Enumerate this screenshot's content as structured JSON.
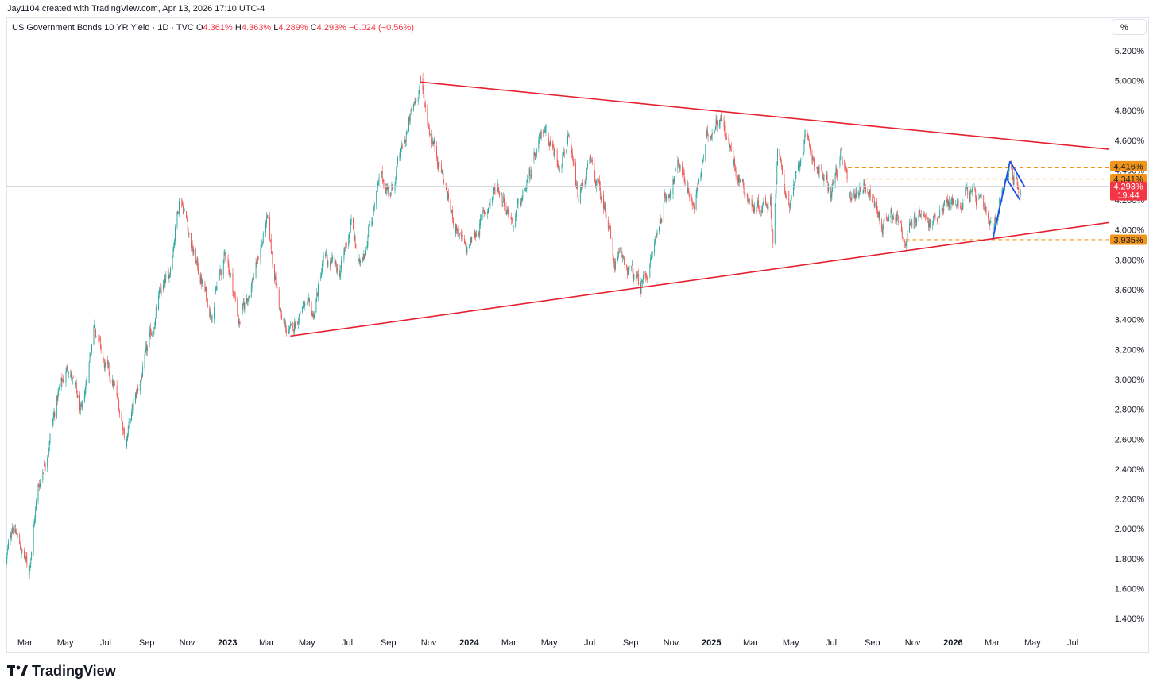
{
  "header": {
    "credit": "Jay1104 created with TradingView.com, Apr 13, 2026 17:10 UTC-4"
  },
  "legend": {
    "symbol": "US Government Bonds 10 YR Yield · 1D · TVC",
    "o_label": "O",
    "o_value": "4.361%",
    "h_label": "H",
    "h_value": "4.363%",
    "l_label": "L",
    "l_value": "4.289%",
    "c_label": "C",
    "c_value": "4.293%",
    "change": "−0.024 (−0.56%)"
  },
  "scale_button": "%",
  "brand": {
    "name": "TradingView"
  },
  "colors": {
    "up": "#26a69a",
    "down": "#ef5350",
    "trendline": "#e5202f",
    "pattern": "#1e53e5",
    "level": "#f0941b",
    "last_price": "#f23645"
  },
  "chart_data": {
    "type": "candlestick",
    "title": "US Government Bonds 10 YR Yield · 1D · TVC",
    "y_unit": "%",
    "ylim": [
      1.3,
      5.3
    ],
    "y_ticks": [
      "5.200%",
      "5.000%",
      "4.800%",
      "4.600%",
      "4.400%",
      "4.200%",
      "4.000%",
      "3.800%",
      "3.600%",
      "3.400%",
      "3.200%",
      "3.000%",
      "2.800%",
      "2.600%",
      "2.400%",
      "2.200%",
      "2.000%",
      "1.800%",
      "1.600%",
      "1.400%"
    ],
    "x_ticks": [
      {
        "label": "Mar",
        "date": "2022-03-01",
        "bold": false
      },
      {
        "label": "May",
        "date": "2022-05-01",
        "bold": false
      },
      {
        "label": "Jul",
        "date": "2022-07-01",
        "bold": false
      },
      {
        "label": "Sep",
        "date": "2022-09-01",
        "bold": false
      },
      {
        "label": "Nov",
        "date": "2022-11-01",
        "bold": false
      },
      {
        "label": "2023",
        "date": "2023-01-01",
        "bold": true
      },
      {
        "label": "Mar",
        "date": "2023-03-01",
        "bold": false
      },
      {
        "label": "May",
        "date": "2023-05-01",
        "bold": false
      },
      {
        "label": "Jul",
        "date": "2023-07-01",
        "bold": false
      },
      {
        "label": "Sep",
        "date": "2023-09-01",
        "bold": false
      },
      {
        "label": "Nov",
        "date": "2023-11-01",
        "bold": false
      },
      {
        "label": "2024",
        "date": "2024-01-01",
        "bold": true
      },
      {
        "label": "Mar",
        "date": "2024-03-01",
        "bold": false
      },
      {
        "label": "May",
        "date": "2024-05-01",
        "bold": false
      },
      {
        "label": "Jul",
        "date": "2024-07-01",
        "bold": false
      },
      {
        "label": "Sep",
        "date": "2024-09-01",
        "bold": false
      },
      {
        "label": "Nov",
        "date": "2024-11-01",
        "bold": false
      },
      {
        "label": "2025",
        "date": "2025-01-01",
        "bold": true
      },
      {
        "label": "Mar",
        "date": "2025-03-01",
        "bold": false
      },
      {
        "label": "May",
        "date": "2025-05-01",
        "bold": false
      },
      {
        "label": "Jul",
        "date": "2025-07-01",
        "bold": false
      },
      {
        "label": "Sep",
        "date": "2025-09-01",
        "bold": false
      },
      {
        "label": "Nov",
        "date": "2025-11-01",
        "bold": false
      },
      {
        "label": "2026",
        "date": "2026-01-01",
        "bold": true
      },
      {
        "label": "Mar",
        "date": "2026-03-01",
        "bold": false
      },
      {
        "label": "May",
        "date": "2026-05-01",
        "bold": false
      },
      {
        "label": "Jul",
        "date": "2026-07-01",
        "bold": false
      }
    ],
    "x_range": [
      "2022-02-01",
      "2026-08-25"
    ],
    "price_path": [
      [
        "2022-02-01",
        1.78
      ],
      [
        "2022-02-10",
        2.04
      ],
      [
        "2022-02-24",
        1.85
      ],
      [
        "2022-03-07",
        1.72
      ],
      [
        "2022-03-20",
        2.25
      ],
      [
        "2022-04-05",
        2.55
      ],
      [
        "2022-04-20",
        2.9
      ],
      [
        "2022-05-06",
        3.1
      ],
      [
        "2022-05-26",
        2.75
      ],
      [
        "2022-06-14",
        3.4
      ],
      [
        "2022-06-28",
        3.1
      ],
      [
        "2022-07-14",
        2.95
      ],
      [
        "2022-08-01",
        2.6
      ],
      [
        "2022-08-10",
        2.78
      ],
      [
        "2022-08-31",
        3.15
      ],
      [
        "2022-09-20",
        3.55
      ],
      [
        "2022-10-05",
        3.7
      ],
      [
        "2022-10-21",
        4.25
      ],
      [
        "2022-11-01",
        4.05
      ],
      [
        "2022-11-10",
        3.85
      ],
      [
        "2022-12-07",
        3.45
      ],
      [
        "2022-12-30",
        3.85
      ],
      [
        "2023-01-19",
        3.38
      ],
      [
        "2023-02-10",
        3.7
      ],
      [
        "2023-03-02",
        4.05
      ],
      [
        "2023-03-24",
        3.38
      ],
      [
        "2023-04-06",
        3.3
      ],
      [
        "2023-04-24",
        3.5
      ],
      [
        "2023-05-10",
        3.42
      ],
      [
        "2023-05-26",
        3.8
      ],
      [
        "2023-06-20",
        3.72
      ],
      [
        "2023-07-07",
        4.05
      ],
      [
        "2023-07-19",
        3.75
      ],
      [
        "2023-08-21",
        4.35
      ],
      [
        "2023-09-05",
        4.25
      ],
      [
        "2023-09-27",
        4.62
      ],
      [
        "2023-10-19",
        5.0
      ],
      [
        "2023-11-01",
        4.7
      ],
      [
        "2023-11-20",
        4.4
      ],
      [
        "2023-12-06",
        4.1
      ],
      [
        "2023-12-27",
        3.85
      ],
      [
        "2024-01-11",
        3.98
      ],
      [
        "2024-02-13",
        4.3
      ],
      [
        "2024-03-08",
        4.05
      ],
      [
        "2024-04-01",
        4.35
      ],
      [
        "2024-04-25",
        4.7
      ],
      [
        "2024-05-14",
        4.45
      ],
      [
        "2024-05-29",
        4.6
      ],
      [
        "2024-06-14",
        4.2
      ],
      [
        "2024-07-01",
        4.45
      ],
      [
        "2024-07-31",
        4.05
      ],
      [
        "2024-08-05",
        3.78
      ],
      [
        "2024-08-20",
        3.8
      ],
      [
        "2024-09-16",
        3.62
      ],
      [
        "2024-10-01",
        3.78
      ],
      [
        "2024-10-22",
        4.2
      ],
      [
        "2024-11-15",
        4.45
      ],
      [
        "2024-12-06",
        4.15
      ],
      [
        "2024-12-26",
        4.62
      ],
      [
        "2025-01-14",
        4.78
      ],
      [
        "2025-02-04",
        4.45
      ],
      [
        "2025-03-04",
        4.15
      ],
      [
        "2025-03-31",
        4.2
      ],
      [
        "2025-04-04",
        3.95
      ],
      [
        "2025-04-11",
        4.5
      ],
      [
        "2025-04-30",
        4.15
      ],
      [
        "2025-05-21",
        4.6
      ],
      [
        "2025-06-13",
        4.4
      ],
      [
        "2025-06-30",
        4.25
      ],
      [
        "2025-07-15",
        4.48
      ],
      [
        "2025-08-01",
        4.22
      ],
      [
        "2025-08-21",
        4.32
      ],
      [
        "2025-09-17",
        4.03
      ],
      [
        "2025-10-01",
        4.15
      ],
      [
        "2025-10-22",
        3.95
      ],
      [
        "2025-11-10",
        4.12
      ],
      [
        "2025-11-28",
        4.02
      ],
      [
        "2025-12-15",
        4.18
      ],
      [
        "2026-01-13",
        4.18
      ],
      [
        "2026-01-21",
        4.27
      ],
      [
        "2026-02-10",
        4.18
      ],
      [
        "2026-03-02",
        3.96
      ],
      [
        "2026-03-18",
        4.32
      ],
      [
        "2026-03-27",
        4.44
      ],
      [
        "2026-04-06",
        4.3
      ],
      [
        "2026-04-13",
        4.29
      ]
    ],
    "last_price": {
      "value": "4.293%",
      "countdown": "19:44",
      "y": 4.293
    },
    "levels": [
      {
        "value": "4.416%",
        "y": 4.416,
        "from": "2025-07-26"
      },
      {
        "value": "4.341%",
        "y": 4.341,
        "from": "2025-08-20"
      },
      {
        "value": "3.935%",
        "y": 3.935,
        "from": "2025-10-21"
      }
    ],
    "trendlines": [
      {
        "name": "upper",
        "from": [
          "2023-10-19",
          4.99
        ],
        "to": [
          "2026-08-25",
          4.54
        ]
      },
      {
        "name": "lower",
        "from": [
          "2023-04-06",
          3.29
        ],
        "to": [
          "2026-08-25",
          4.05
        ]
      }
    ],
    "pattern_lines": [
      {
        "from": [
          "2026-03-02",
          3.94
        ],
        "to": [
          "2026-03-28",
          4.46
        ]
      },
      {
        "from": [
          "2026-03-28",
          4.46
        ],
        "to": [
          "2026-04-19",
          4.29
        ]
      },
      {
        "from": [
          "2026-03-22",
          4.35
        ],
        "to": [
          "2026-04-12",
          4.2
        ]
      }
    ]
  }
}
